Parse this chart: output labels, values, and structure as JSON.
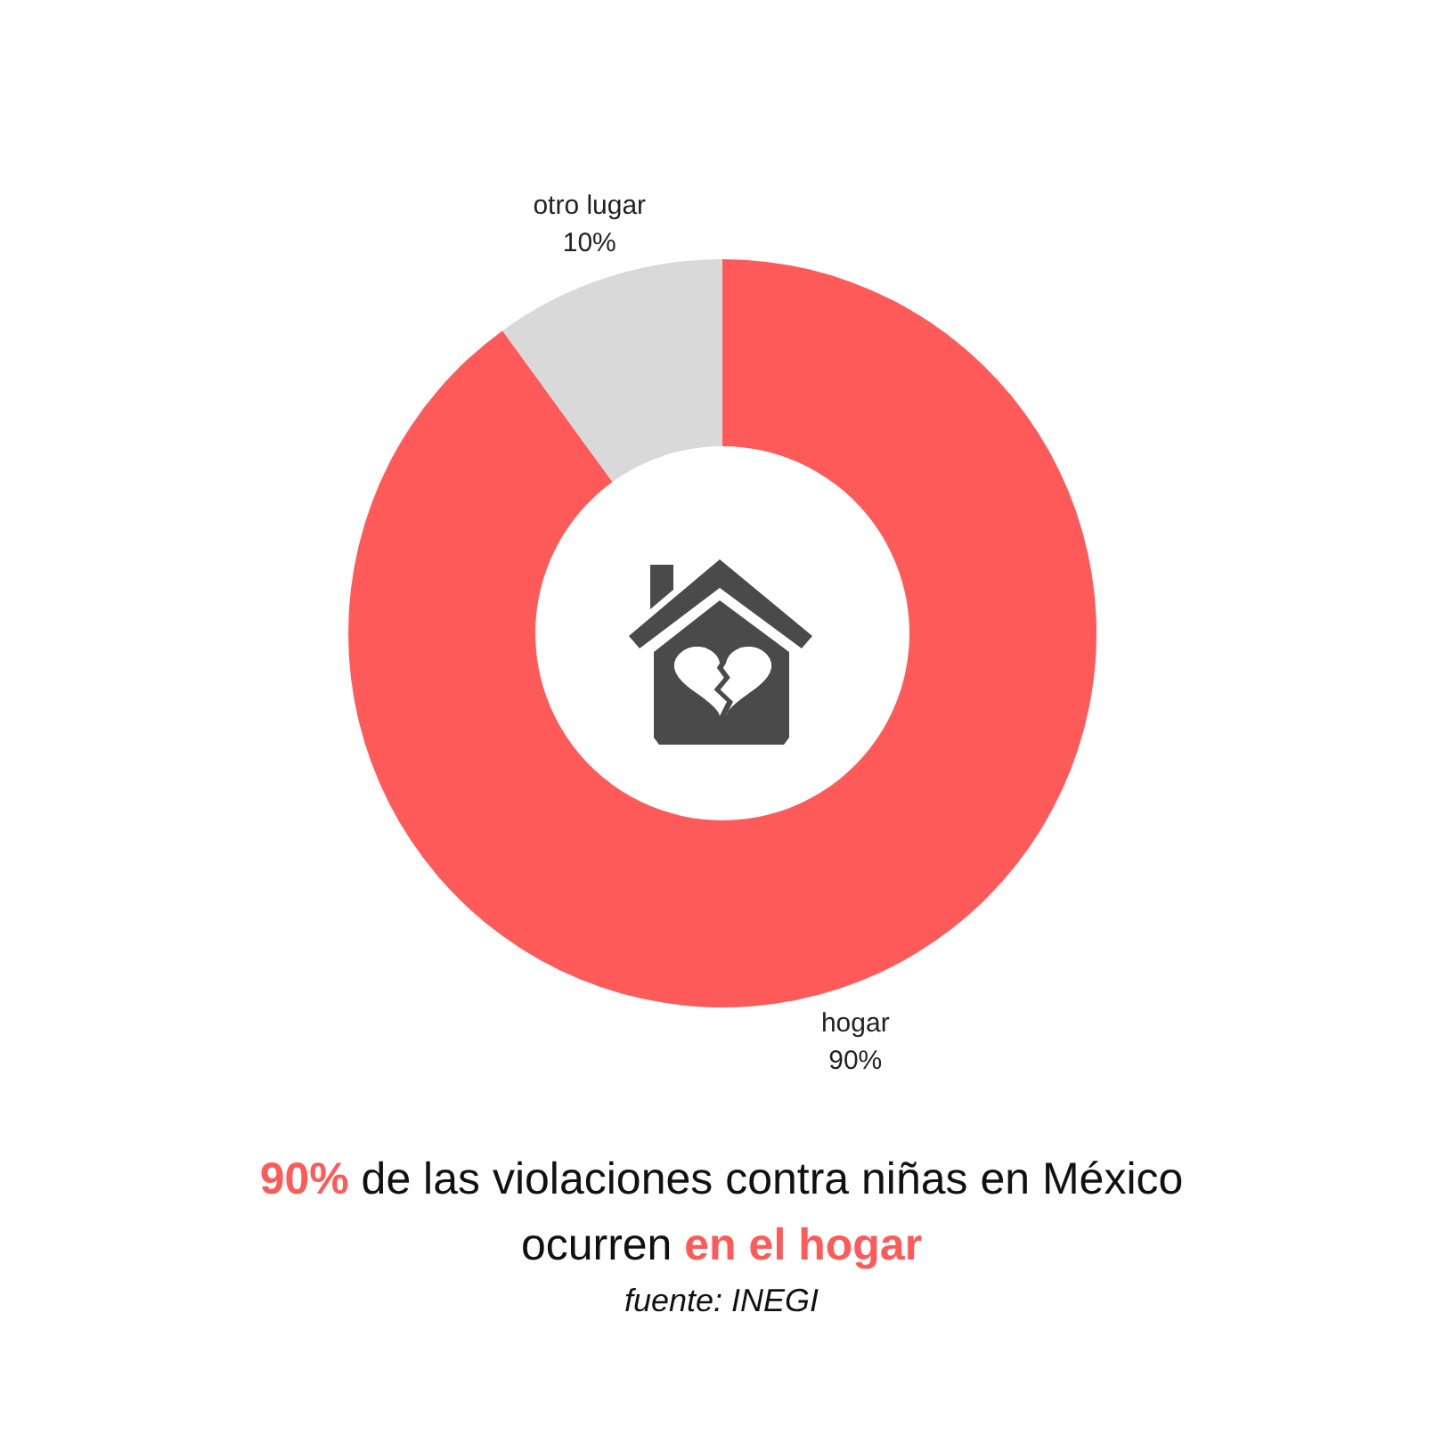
{
  "chart_data": {
    "type": "donut",
    "title": "90% de las violaciones contra niñas en México\nocurren en el hogar",
    "annotations": [
      "fuente: INEGI"
    ],
    "categories": [
      "hogar",
      "otro lugar"
    ],
    "values": [
      90,
      10
    ],
    "colors": [
      "#ff5a5a",
      "#d9d9d9"
    ],
    "value_labels": [
      "90%",
      "10%"
    ]
  }
}
